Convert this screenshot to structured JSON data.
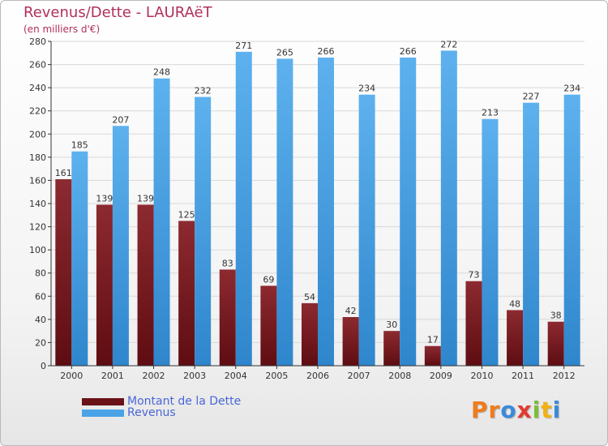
{
  "header": {
    "title": "Revenus/Dette - LAURAëT",
    "subtitle": "(en milliers d'€)"
  },
  "legend": {
    "debt_label": "Montant de la Dette",
    "revenue_label": "Revenus"
  },
  "logo": {
    "letters": [
      "P",
      "r",
      "o",
      "x",
      "i",
      "t",
      "i"
    ],
    "colors": [
      "#f07b1d",
      "#f07b1d",
      "#3b8ad8",
      "#e23a2f",
      "#7abf3a",
      "#f3b10f",
      "#3b8ad8"
    ]
  },
  "colors": {
    "debt": "#7a1d22",
    "revenue": "#4aa3e6",
    "axis": "#333333",
    "grid": "#d9d9d9"
  },
  "chart_data": {
    "type": "bar",
    "categories": [
      "2000",
      "2001",
      "2002",
      "2003",
      "2004",
      "2005",
      "2006",
      "2007",
      "2008",
      "2009",
      "2010",
      "2011",
      "2012"
    ],
    "series": [
      {
        "name": "Montant de la Dette",
        "values": [
          161,
          139,
          139,
          125,
          83,
          69,
          54,
          42,
          30,
          17,
          73,
          48,
          38
        ]
      },
      {
        "name": "Revenus",
        "values": [
          185,
          207,
          248,
          232,
          271,
          265,
          266,
          234,
          266,
          272,
          213,
          227,
          234
        ]
      }
    ],
    "y_ticks": [
      0,
      20,
      40,
      60,
      80,
      100,
      120,
      140,
      160,
      180,
      200,
      220,
      240,
      260,
      280
    ],
    "ylim": [
      0,
      280
    ],
    "grid": true,
    "legend_position": "bottom-left"
  }
}
